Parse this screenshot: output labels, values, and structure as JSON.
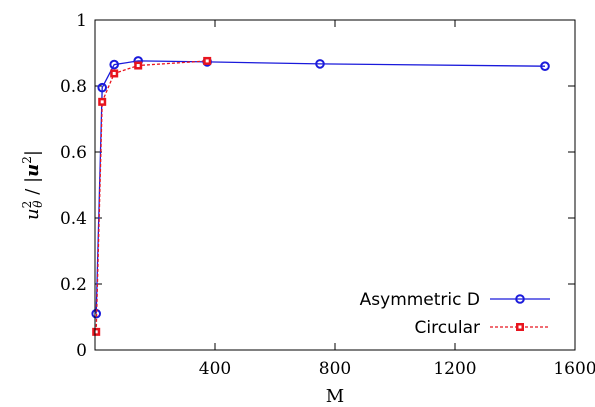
{
  "chart_data": {
    "type": "line",
    "xlabel": "M",
    "ylabel_base": "u",
    "ylabel_sub": "θ",
    "ylabel_sup": "2",
    "ylabel_sep": " / ",
    "ylabel_den_base": "u",
    "ylabel_den_sup": "2",
    "xlim": [
      0,
      1600
    ],
    "ylim": [
      0,
      1
    ],
    "xticks": [
      400,
      800,
      1200,
      1600
    ],
    "yticks": [
      0,
      0.2,
      0.4,
      0.6,
      0.8,
      1
    ],
    "xtick_labels": [
      "400",
      "800",
      "1200",
      "1600"
    ],
    "ytick_labels": [
      "0",
      "0.2",
      "0.4",
      "0.6",
      "0.8",
      "1"
    ],
    "legend_position": "bottom-right",
    "grid": false,
    "series": [
      {
        "name": "Asymmetric D",
        "color": "#1a1adb",
        "marker": "circle",
        "dash": "solid",
        "x": [
          4,
          24,
          64,
          144,
          374,
          750,
          1500
        ],
        "y": [
          0.11,
          0.795,
          0.865,
          0.876,
          0.873,
          0.867,
          0.86
        ]
      },
      {
        "name": "Circular",
        "color": "#e8141e",
        "marker": "square",
        "dash": "dashed",
        "x": [
          4,
          24,
          64,
          144,
          374
        ],
        "y": [
          0.055,
          0.752,
          0.838,
          0.862,
          0.876
        ]
      }
    ]
  }
}
